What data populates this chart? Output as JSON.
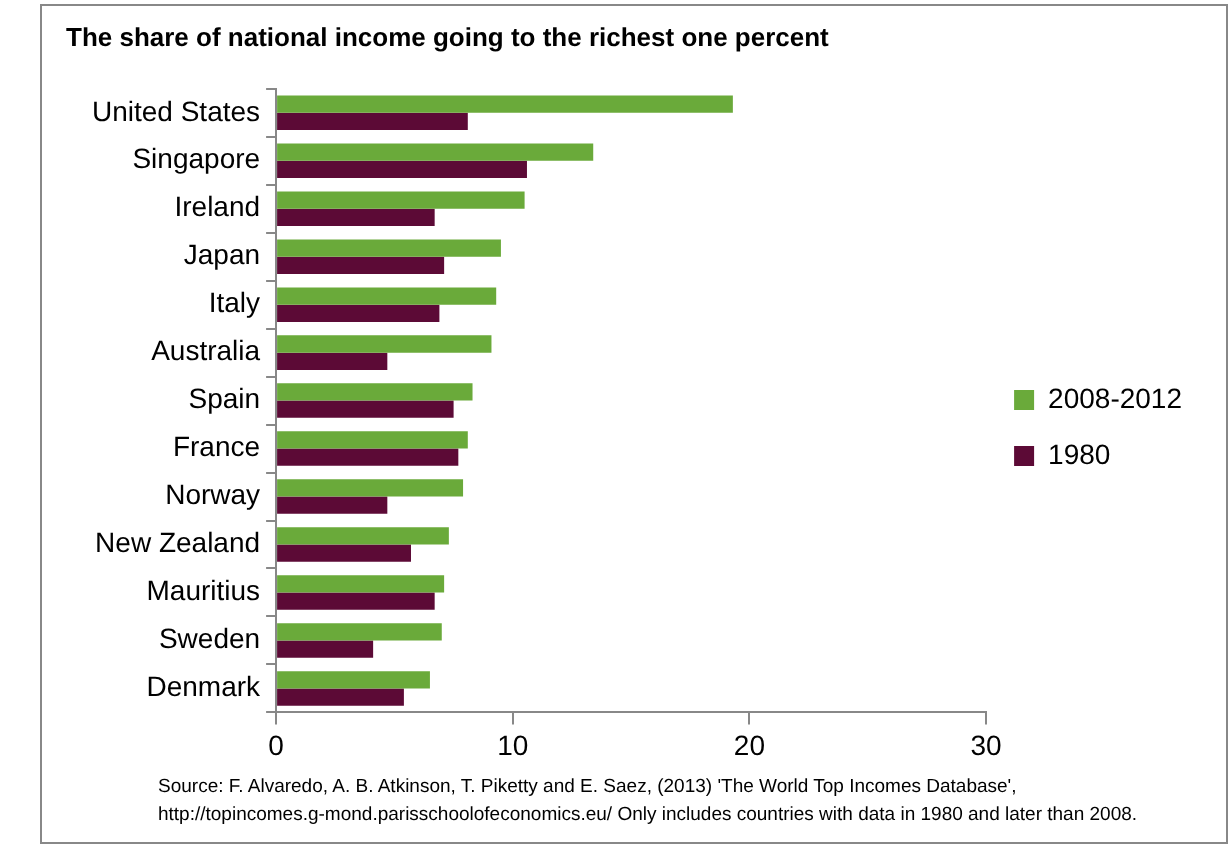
{
  "chart_data": {
    "type": "bar",
    "orientation": "horizontal",
    "title": "The share of national income going to the richest one percent",
    "categories": [
      "United States",
      "Singapore",
      "Ireland",
      "Japan",
      "Italy",
      "Australia",
      "Spain",
      "France",
      "Norway",
      "New Zealand",
      "Mauritius",
      "Sweden",
      "Denmark"
    ],
    "series": [
      {
        "name": "2008-2012",
        "color": "#6aaa3a",
        "values": [
          19.3,
          13.4,
          10.5,
          9.5,
          9.3,
          9.1,
          8.3,
          8.1,
          7.9,
          7.3,
          7.1,
          7.0,
          6.5
        ]
      },
      {
        "name": "1980",
        "color": "#5c0a36",
        "values": [
          8.1,
          10.6,
          6.7,
          7.1,
          6.9,
          4.7,
          7.5,
          7.7,
          4.7,
          5.7,
          6.7,
          4.1,
          5.4
        ]
      }
    ],
    "xlim": [
      0,
      30
    ],
    "xticks": [
      0,
      10,
      20,
      30
    ],
    "grid": false,
    "legend": "right",
    "annotations": [
      "Source: F. Alvaredo, A. B. Atkinson, T. Piketty and E. Saez, (2013) 'The World Top Incomes Database',",
      "http://topincomes.g-mond.parisschoolofeconomics.eu/  Only includes countries with data in 1980 and later than 2008."
    ]
  }
}
